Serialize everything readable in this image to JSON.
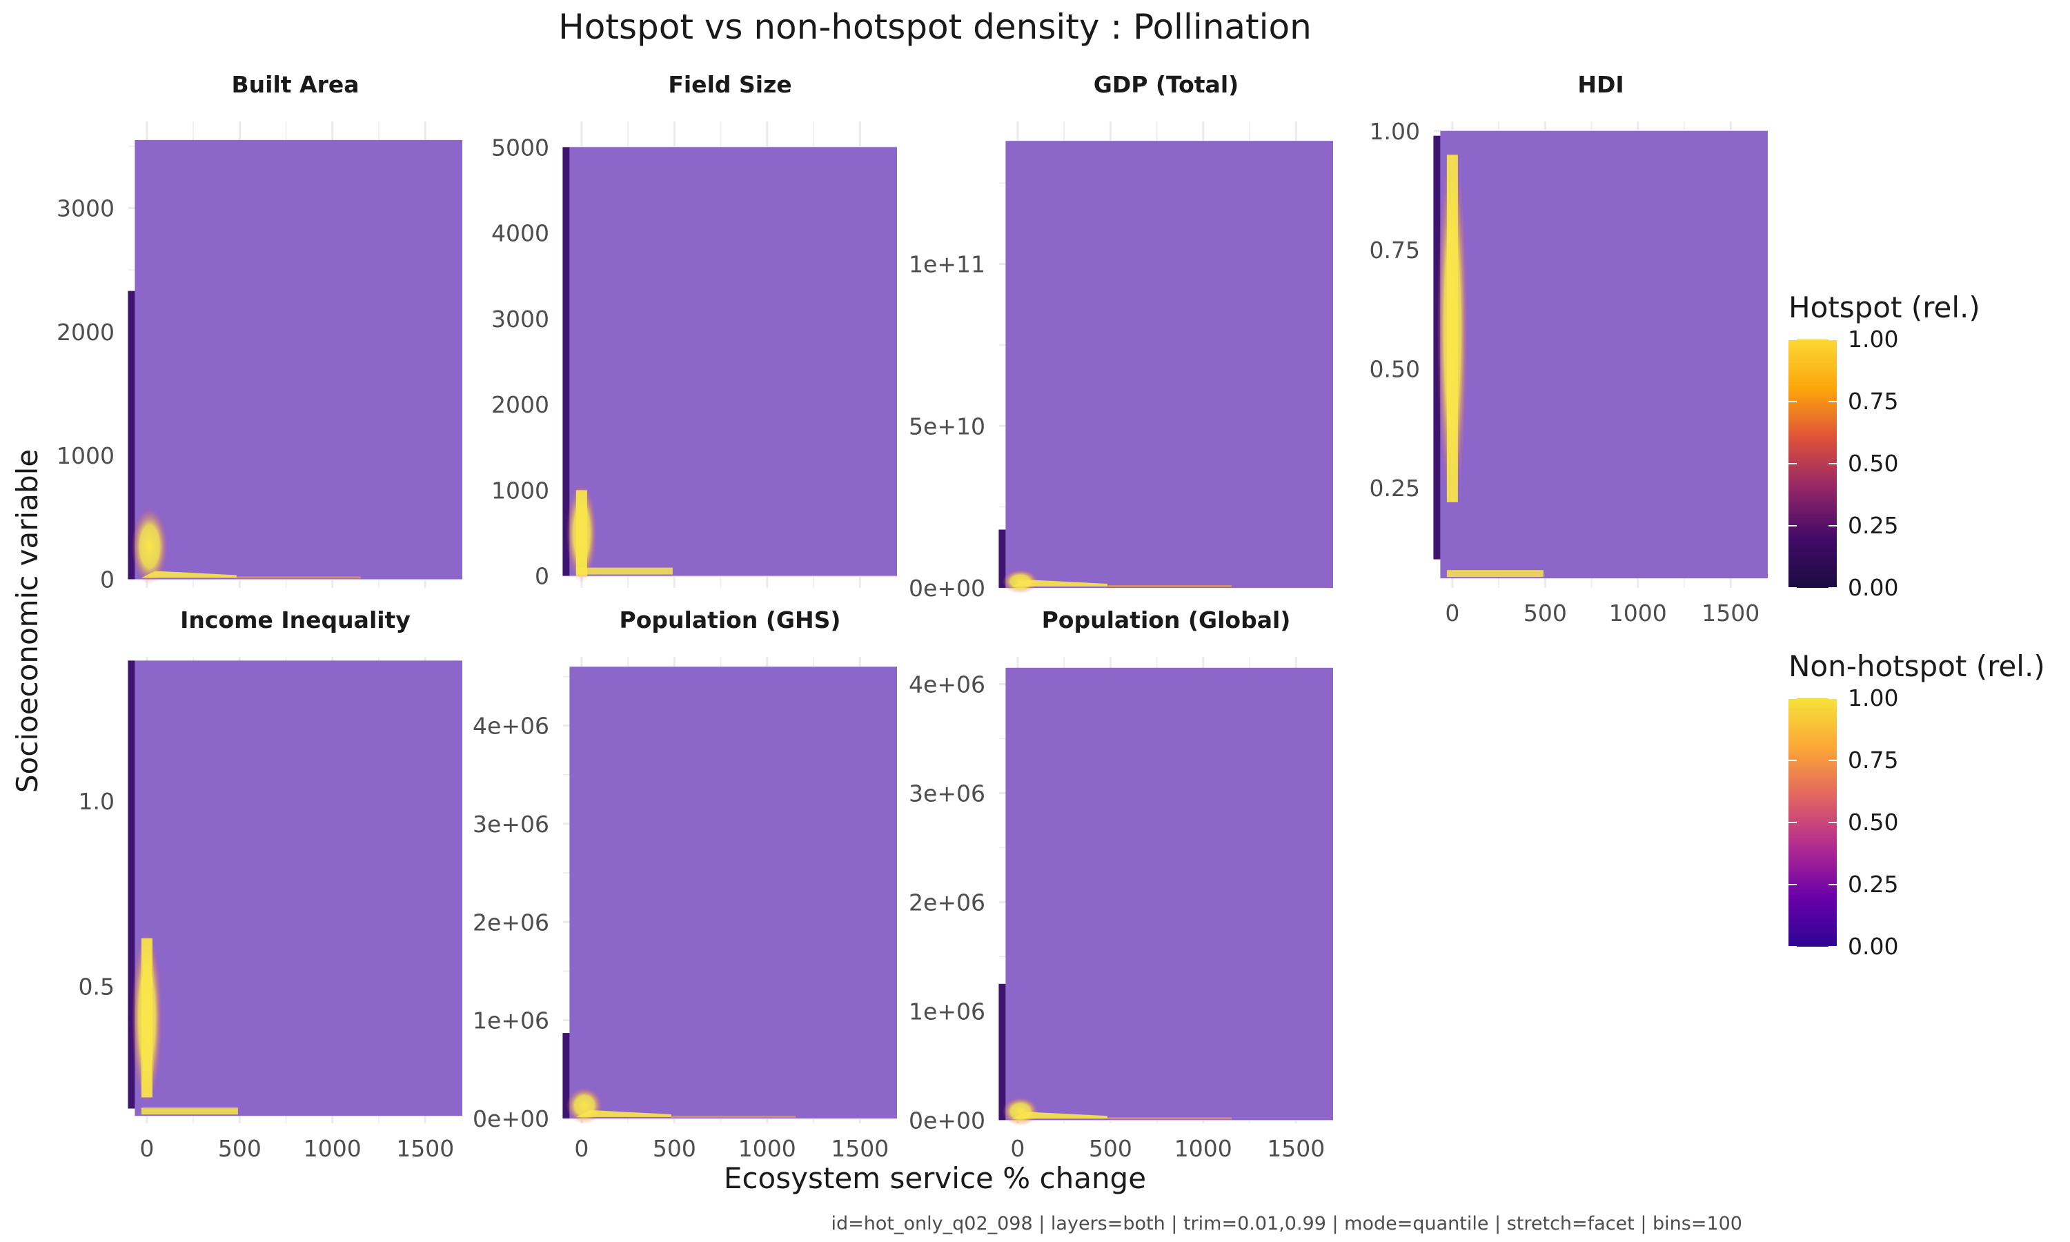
{
  "chart_data": {
    "type": "heatmap",
    "title": "Hotspot vs non-hotspot density : Pollination",
    "xlabel": "Ecosystem service % change",
    "ylabel": "Socioeconomic variable",
    "caption": "id=hot_only_q02_098 | layers=both | trim=0.01,0.99 | mode=quantile | stretch=facet | bins=100",
    "x_range": [
      -100,
      1700
    ],
    "x_ticks": [
      0,
      500,
      1000,
      1500
    ],
    "x_tick_labels": [
      "0",
      "500",
      "1000",
      "1500"
    ],
    "grid": true,
    "colors": {
      "background_tile": "#8c66c9",
      "hotspot_bar": "#3f1470",
      "density_high": "#f9e64a",
      "gridline": "#ebebeb"
    },
    "legends": [
      {
        "title": "Hotspot (rel.)",
        "scale": "inferno",
        "ticks": [
          "1.00",
          "0.75",
          "0.50",
          "0.25",
          "0.00"
        ],
        "stops": [
          "#fcd734",
          "#fca50a",
          "#dd513a",
          "#932667",
          "#420a68",
          "#1b0c41"
        ]
      },
      {
        "title": "Non-hotspot (rel.)",
        "scale": "plasma",
        "ticks": [
          "1.00",
          "0.75",
          "0.50",
          "0.25",
          "0.00"
        ],
        "stops": [
          "#f6e23a",
          "#fca636",
          "#e16462",
          "#b12a90",
          "#6a00a8",
          "#2d0594"
        ]
      }
    ],
    "facets": [
      {
        "name": "Built Area",
        "y_range": [
          -70,
          3700
        ],
        "y_ticks": [
          0,
          1000,
          2000,
          3000
        ],
        "y_tick_labels": [
          "0",
          "1000",
          "2000",
          "3000"
        ],
        "tile_y": [
          0,
          3550
        ],
        "tile_x": [
          -65,
          1700
        ],
        "hotspot_bar_y": [
          0,
          2330
        ],
        "density": {
          "base": 0,
          "peak": 530,
          "shape": "floor"
        }
      },
      {
        "name": "Field Size",
        "y_range": [
          -140,
          5300
        ],
        "y_ticks": [
          0,
          1000,
          2000,
          3000,
          4000,
          5000
        ],
        "y_tick_labels": [
          "0",
          "1000",
          "2000",
          "3000",
          "4000",
          "5000"
        ],
        "tile_y": [
          0,
          5000
        ],
        "tile_x": [
          -65,
          1700
        ],
        "hotspot_bar_y": [
          0,
          5000
        ],
        "density": {
          "base": 0,
          "peak": 1000,
          "shape": "column"
        }
      },
      {
        "name": "GDP (Total)",
        "y_range": [
          0,
          144000000000.0
        ],
        "y_ticks": [
          0,
          50000000000.0,
          100000000000.0
        ],
        "y_tick_labels": [
          "0e+00",
          "5e+10",
          "1e+11"
        ],
        "tile_y": [
          0,
          138000000000.0
        ],
        "tile_x": [
          -65,
          1700
        ],
        "hotspot_bar_y": [
          0,
          18000000000.0
        ],
        "density": {
          "base": 0,
          "peak": 4000000000.0,
          "shape": "floor"
        }
      },
      {
        "name": "HDI",
        "y_range": [
          0.04,
          1.02
        ],
        "y_ticks": [
          0.25,
          0.5,
          0.75,
          1.0
        ],
        "y_tick_labels": [
          "0.25",
          "0.50",
          "0.75",
          "1.00"
        ],
        "tile_y": [
          0.06,
          1.0
        ],
        "tile_x": [
          -65,
          1700
        ],
        "hotspot_bar_y": [
          0.1,
          0.99
        ],
        "density": {
          "base": 0.22,
          "peak": 0.95,
          "shape": "column"
        }
      },
      {
        "name": "Income Inequality",
        "y_range": [
          0.13,
          1.39
        ],
        "y_ticks": [
          0.5,
          1.0
        ],
        "y_tick_labels": [
          "0.5",
          "1.0"
        ],
        "tile_y": [
          0.15,
          1.38
        ],
        "tile_x": [
          -65,
          1700
        ],
        "hotspot_bar_y": [
          0.17,
          1.38
        ],
        "density": {
          "base": 0.2,
          "peak": 0.63,
          "shape": "column"
        }
      },
      {
        "name": "Population (GHS)",
        "y_range": [
          -50000,
          4700000
        ],
        "y_ticks": [
          0,
          1000000,
          2000000,
          3000000,
          4000000
        ],
        "y_tick_labels": [
          "0e+00",
          "1e+06",
          "2e+06",
          "3e+06",
          "4e+06"
        ],
        "tile_y": [
          0,
          4600000
        ],
        "tile_x": [
          -65,
          1700
        ],
        "hotspot_bar_y": [
          0,
          870000
        ],
        "density": {
          "base": 0,
          "peak": 260000,
          "shape": "floor"
        }
      },
      {
        "name": "Population (Global)",
        "y_range": [
          -30000,
          4250000
        ],
        "y_ticks": [
          0,
          1000000,
          2000000,
          3000000,
          4000000
        ],
        "y_tick_labels": [
          "0e+00",
          "1e+06",
          "2e+06",
          "3e+06",
          "4e+06"
        ],
        "tile_y": [
          0,
          4150000
        ],
        "tile_x": [
          -65,
          1700
        ],
        "hotspot_bar_y": [
          0,
          1250000
        ],
        "density": {
          "base": 0,
          "peak": 160000,
          "shape": "floor"
        }
      }
    ]
  }
}
